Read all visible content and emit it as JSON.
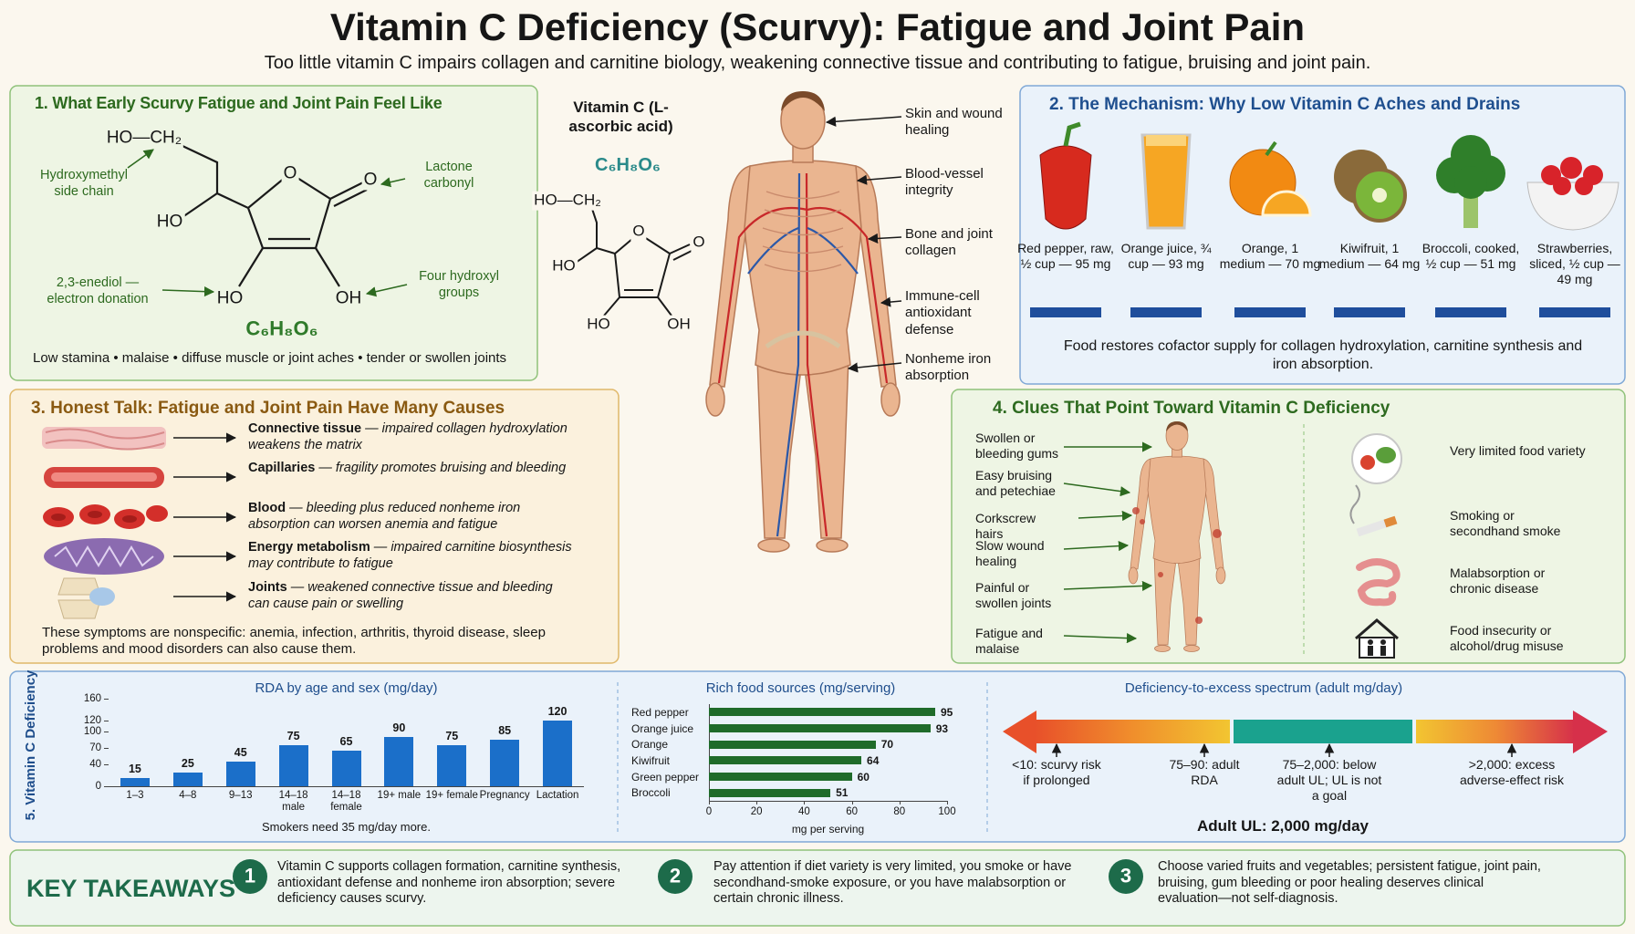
{
  "header": {
    "title": "Vitamin C Deficiency (Scurvy): Fatigue and Joint Pain",
    "subtitle": "Too little vitamin C impairs collagen and carnitine biology, weakening connective tissue and contributing to fatigue, bruising and joint pain."
  },
  "panel1": {
    "title": "1. What Early Scurvy Fatigue and Joint Pain Feel Like",
    "atoms": [
      "HO—CH₂",
      "O",
      "O",
      "HO",
      "HO",
      "OH"
    ],
    "annotations": [
      "Hydroxymethyl side chain",
      "Lactone carbonyl",
      "2,3-enediol — electron donation",
      "Four hydroxyl groups"
    ],
    "formula": "C₆H₈O₆",
    "symptoms": "Low stamina • malaise • diffuse muscle or joint aches • tender or swollen joints"
  },
  "molecule": {
    "name": "Vitamin C (L-ascorbic acid)",
    "formula": "C₆H₈O₆",
    "atoms": [
      "HO—CH₂",
      "O",
      "O",
      "HO",
      "HO",
      "OH"
    ]
  },
  "body_labels": [
    "Skin and wound healing",
    "Blood-vessel integrity",
    "Bone and joint collagen",
    "Immune-cell antioxidant defense",
    "Nonheme iron absorption"
  ],
  "panel2": {
    "title": "2. The Mechanism: Why Low Vitamin C Aches and Drains",
    "foods": [
      "Red pepper, raw, ½ cup — 95 mg",
      "Orange juice, ¾ cup — 93 mg",
      "Orange, 1 medium — 70 mg",
      "Kiwifruit, 1 medium — 64 mg",
      "Broccoli, cooked, ½ cup — 51 mg",
      "Strawberries, sliced, ½ cup — 49 mg"
    ],
    "caption": "Food restores cofactor supply for collagen hydroxylation, carnitine synthesis and iron absorption."
  },
  "panel3": {
    "title": "3. Honest Talk: Fatigue and Joint Pain Have Many Causes",
    "items": [
      {
        "term": "Connective tissue",
        "text": " — impaired collagen hydroxylation weakens the matrix"
      },
      {
        "term": "Capillaries",
        "text": " — fragility promotes bruising and bleeding"
      },
      {
        "term": "Blood",
        "text": " — bleeding plus reduced nonheme iron absorption can worsen anemia and fatigue"
      },
      {
        "term": "Energy metabolism",
        "text": " — impaired carnitine biosynthesis may contribute to fatigue"
      },
      {
        "term": "Joints",
        "text": " — weakened connective tissue and bleeding can cause pain or swelling"
      }
    ],
    "note": "These symptoms are nonspecific: anemia, infection, arthritis, thyroid disease, sleep problems and mood disorders can also cause them."
  },
  "panel4": {
    "title": "4. Clues That Point Toward Vitamin C Deficiency",
    "signs": [
      "Swollen or bleeding gums",
      "Easy bruising and petechiae",
      "Corkscrew hairs",
      "Slow wound healing",
      "Painful or swollen joints",
      "Fatigue and malaise"
    ],
    "risks": [
      "Very limited food variety",
      "Smoking or secondhand smoke",
      "Malabsorption or chronic disease",
      "Food insecurity or alcohol/drug misuse"
    ]
  },
  "chart_data": [
    {
      "type": "bar",
      "title": "RDA by age and sex (mg/day)",
      "y_label": "5. Vitamin C Deficiency",
      "categories": [
        "1–3",
        "4–8",
        "9–13",
        "14–18 male",
        "14–18 female",
        "19+ male",
        "19+ female",
        "Pregnancy",
        "Lactation"
      ],
      "values": [
        15,
        25,
        45,
        75,
        65,
        90,
        75,
        85,
        120
      ],
      "color": "#1b6fc9",
      "ylim": [
        0,
        160
      ],
      "yticks": [
        0,
        40,
        70,
        100,
        120,
        160
      ],
      "note": "Smokers need 35 mg/day more."
    },
    {
      "type": "hbar",
      "title": "Rich food sources (mg/serving)",
      "x_label": "mg per serving",
      "categories": [
        "Red pepper",
        "Orange juice",
        "Orange",
        "Kiwifruit",
        "Green pepper",
        "Broccoli"
      ],
      "values": [
        95,
        93,
        70,
        64,
        60,
        51
      ],
      "color": "#1f6b2a",
      "xlim": [
        0,
        100
      ],
      "xticks": [
        0,
        20,
        40,
        60,
        80,
        100
      ]
    }
  ],
  "spectrum": {
    "title": "Deficiency-to-excess spectrum (adult mg/day)",
    "markers": [
      "<10: scurvy risk if prolonged",
      "75–90: adult RDA",
      "75–2,000: below adult UL; UL is not a goal",
      ">2,000: excess adverse-effect risk"
    ],
    "ul": "Adult UL: 2,000 mg/day"
  },
  "takeaways": {
    "title": "KEY TAKEAWAYS",
    "items": [
      {
        "number": "1",
        "text": "Vitamin C supports collagen formation, carnitine synthesis, antioxidant defense and nonheme iron absorption; severe deficiency causes scurvy."
      },
      {
        "number": "2",
        "text": "Pay attention if diet variety is very limited, you smoke or have secondhand-smoke exposure, or you have malabsorption or certain chronic illness."
      },
      {
        "number": "3",
        "text": "Choose varied fruits and vegetables; persistent fatigue, joint pain, bruising, gum bleeding or poor healing deserves clinical evaluation—not self-diagnosis."
      }
    ]
  }
}
